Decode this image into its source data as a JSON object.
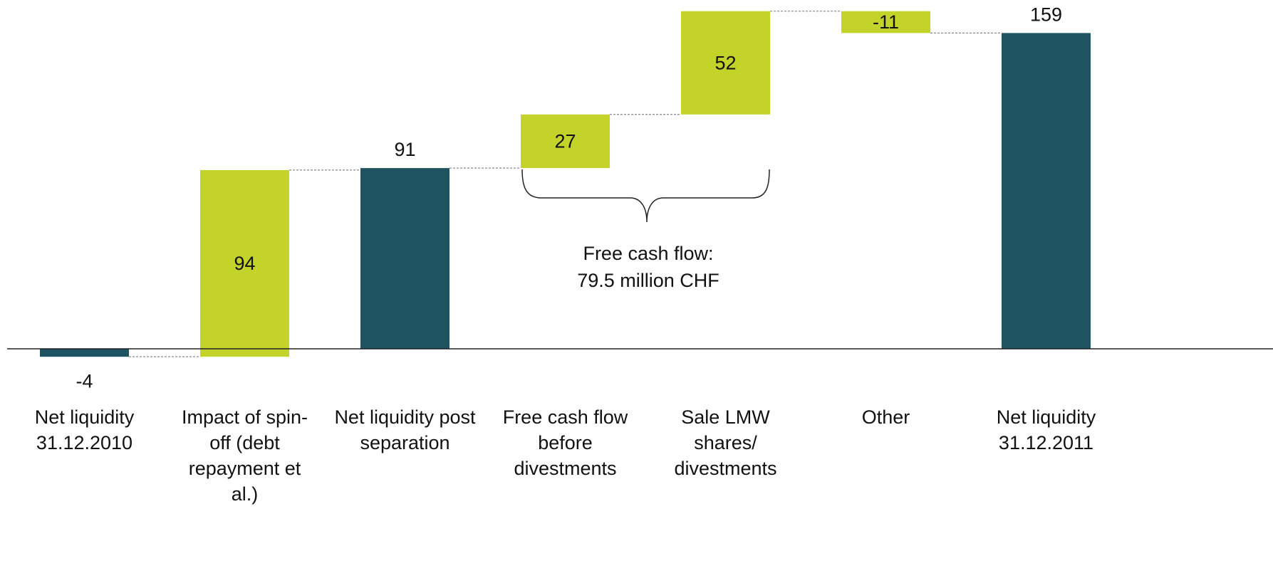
{
  "chart_data": {
    "type": "waterfall",
    "categories": [
      "Net liquidity 31.12.2010",
      "Impact of spin-off (debt repayment et al.)",
      "Net liquidity post separation",
      "Free cash flow before divestments",
      "Sale LMW shares/ divestments",
      "Other",
      "Net liquidity 31.12.2011"
    ],
    "values": [
      -4,
      94,
      91,
      27,
      52,
      -11,
      159
    ],
    "measures": [
      "total",
      "relative",
      "total",
      "relative",
      "relative",
      "relative",
      "total"
    ],
    "total_color": "#1f5362",
    "delta_color": "#c3d32a",
    "ylim": [
      -5,
      170
    ],
    "annotation": [
      "Free cash flow:",
      "79.5 million CHF"
    ]
  }
}
